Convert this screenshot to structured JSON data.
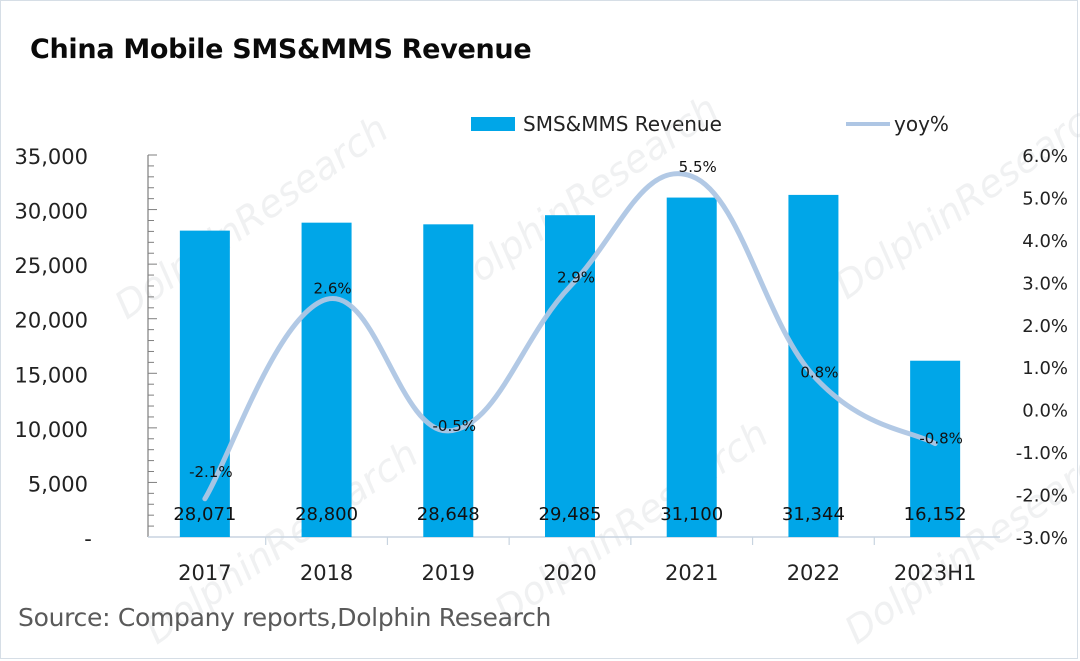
{
  "chart_data": {
    "type": "bar+line",
    "title": "China Mobile SMS&MMS Revenue",
    "categories": [
      "2017",
      "2018",
      "2019",
      "2020",
      "2021",
      "2022",
      "2023H1"
    ],
    "series": [
      {
        "name": "SMS&MMS Revenue",
        "type": "bar",
        "axis": "left",
        "color": "#00a6e8",
        "values": [
          28071,
          28800,
          28648,
          29485,
          31100,
          31344,
          16152
        ],
        "labels": [
          "28,071",
          "28,800",
          "28,648",
          "29,485",
          "31,100",
          "31,344",
          "16,152"
        ]
      },
      {
        "name": "yoy%",
        "type": "line",
        "axis": "right",
        "smooth": true,
        "color": "#aec6e4",
        "values": [
          -2.1,
          2.6,
          -0.5,
          2.9,
          5.5,
          0.8,
          -0.8
        ],
        "labels": [
          "-2.1%",
          "2.6%",
          "-0.5%",
          "2.9%",
          "5.5%",
          "0.8%",
          "-0.8%"
        ]
      }
    ],
    "left_axis": {
      "ylim": [
        0,
        35000
      ],
      "ticks": [
        0,
        5000,
        10000,
        15000,
        20000,
        25000,
        30000,
        35000
      ],
      "tick_labels": [
        "-",
        "5,000",
        "10,000",
        "15,000",
        "20,000",
        "25,000",
        "30,000",
        "35,000"
      ]
    },
    "right_axis": {
      "ylim": [
        -3.0,
        6.0
      ],
      "ticks": [
        -3,
        -2,
        -1,
        0,
        1,
        2,
        3,
        4,
        5,
        6
      ],
      "tick_labels": [
        "-3.0%",
        "-2.0%",
        "-1.0%",
        "0.0%",
        "1.0%",
        "2.0%",
        "3.0%",
        "4.0%",
        "5.0%",
        "6.0%"
      ]
    },
    "legend": {
      "position": "top-right",
      "entries": [
        "SMS&MMS Revenue",
        "yoy%"
      ]
    },
    "grid": false,
    "xlabel": "",
    "ylabel": ""
  },
  "source": "Source: Company reports,Dolphin Research",
  "watermark": "DolphinResearch"
}
